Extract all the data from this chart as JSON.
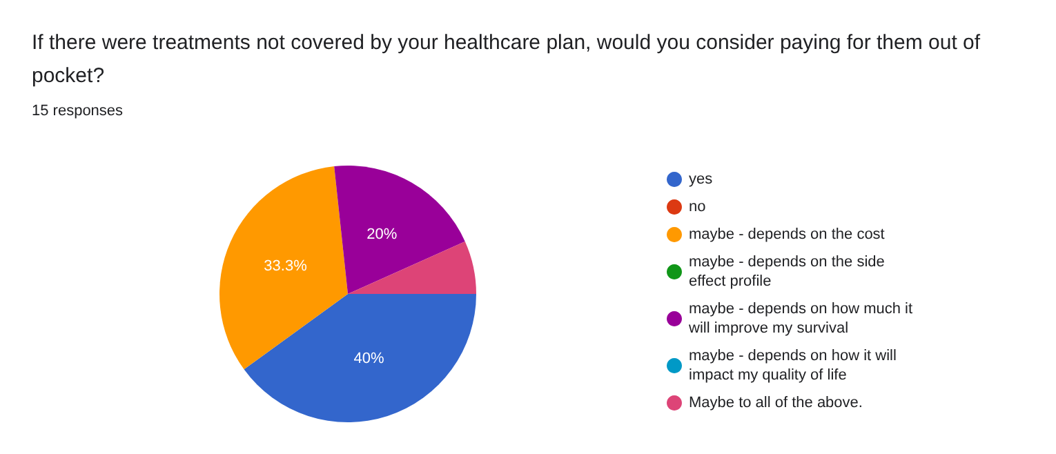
{
  "chart_data": {
    "type": "pie",
    "title": "If there were treatments not covered by your healthcare plan, would you consider paying for them out of pocket?",
    "subtitle": "15 responses",
    "categories": [
      "yes",
      "no",
      "maybe - depends on the cost",
      "maybe - depends on the side effect profile",
      "maybe - depends on how much it will improve my survival",
      "maybe - depends on how it will impact my quality of life",
      "Maybe to all of the above."
    ],
    "values": [
      40,
      0,
      33.3,
      0,
      20,
      0,
      6.7
    ],
    "colors": [
      "#3366cc",
      "#dc3912",
      "#ff9900",
      "#109618",
      "#990099",
      "#0099c6",
      "#dd4477"
    ],
    "value_labels": [
      "40%",
      null,
      "33.3%",
      null,
      "20%",
      null,
      null
    ],
    "legend": "right"
  }
}
